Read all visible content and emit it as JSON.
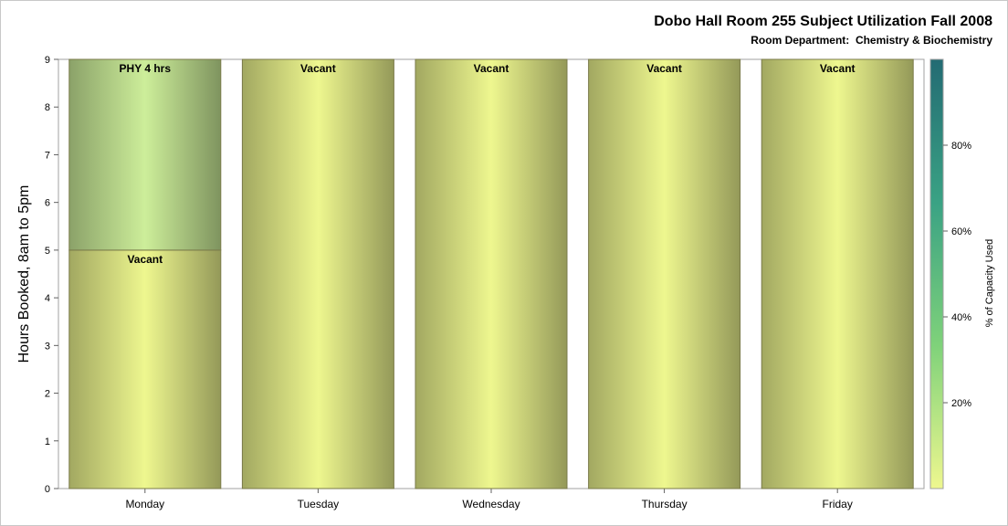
{
  "chart_data": {
    "type": "bar",
    "title": "Dobo Hall Room 255 Subject Utilization Fall 2008",
    "subtitle": "Room Department:  Chemistry & Biochemistry",
    "xlabel": "",
    "ylabel": "Hours Booked, 8am to 5pm",
    "ylim": [
      0,
      9
    ],
    "yticks": [
      "0",
      "1",
      "2",
      "3",
      "4",
      "5",
      "6",
      "7",
      "8",
      "9"
    ],
    "categories": [
      "Monday",
      "Tuesday",
      "Wednesday",
      "Thursday",
      "Friday"
    ],
    "stacks": [
      [
        {
          "label": "Vacant",
          "value": 5,
          "color": "#eef78f"
        },
        {
          "label": "PHY 4 hrs",
          "value": 4,
          "color": "#cdee9a"
        }
      ],
      [
        {
          "label": "Vacant",
          "value": 9,
          "color": "#eef78f"
        }
      ],
      [
        {
          "label": "Vacant",
          "value": 9,
          "color": "#eef78f"
        }
      ],
      [
        {
          "label": "Vacant",
          "value": 9,
          "color": "#eef78f"
        }
      ],
      [
        {
          "label": "Vacant",
          "value": 9,
          "color": "#eef78f"
        }
      ]
    ],
    "colorbar": {
      "label": "% of Capacity Used",
      "range": [
        0,
        100
      ],
      "ticks": [
        "20%",
        "40%",
        "60%",
        "80%"
      ],
      "tick_values": [
        20,
        40,
        60,
        80
      ],
      "colors": [
        "#eef78f",
        "#7fd27a",
        "#3aa284",
        "#236b73"
      ]
    }
  }
}
